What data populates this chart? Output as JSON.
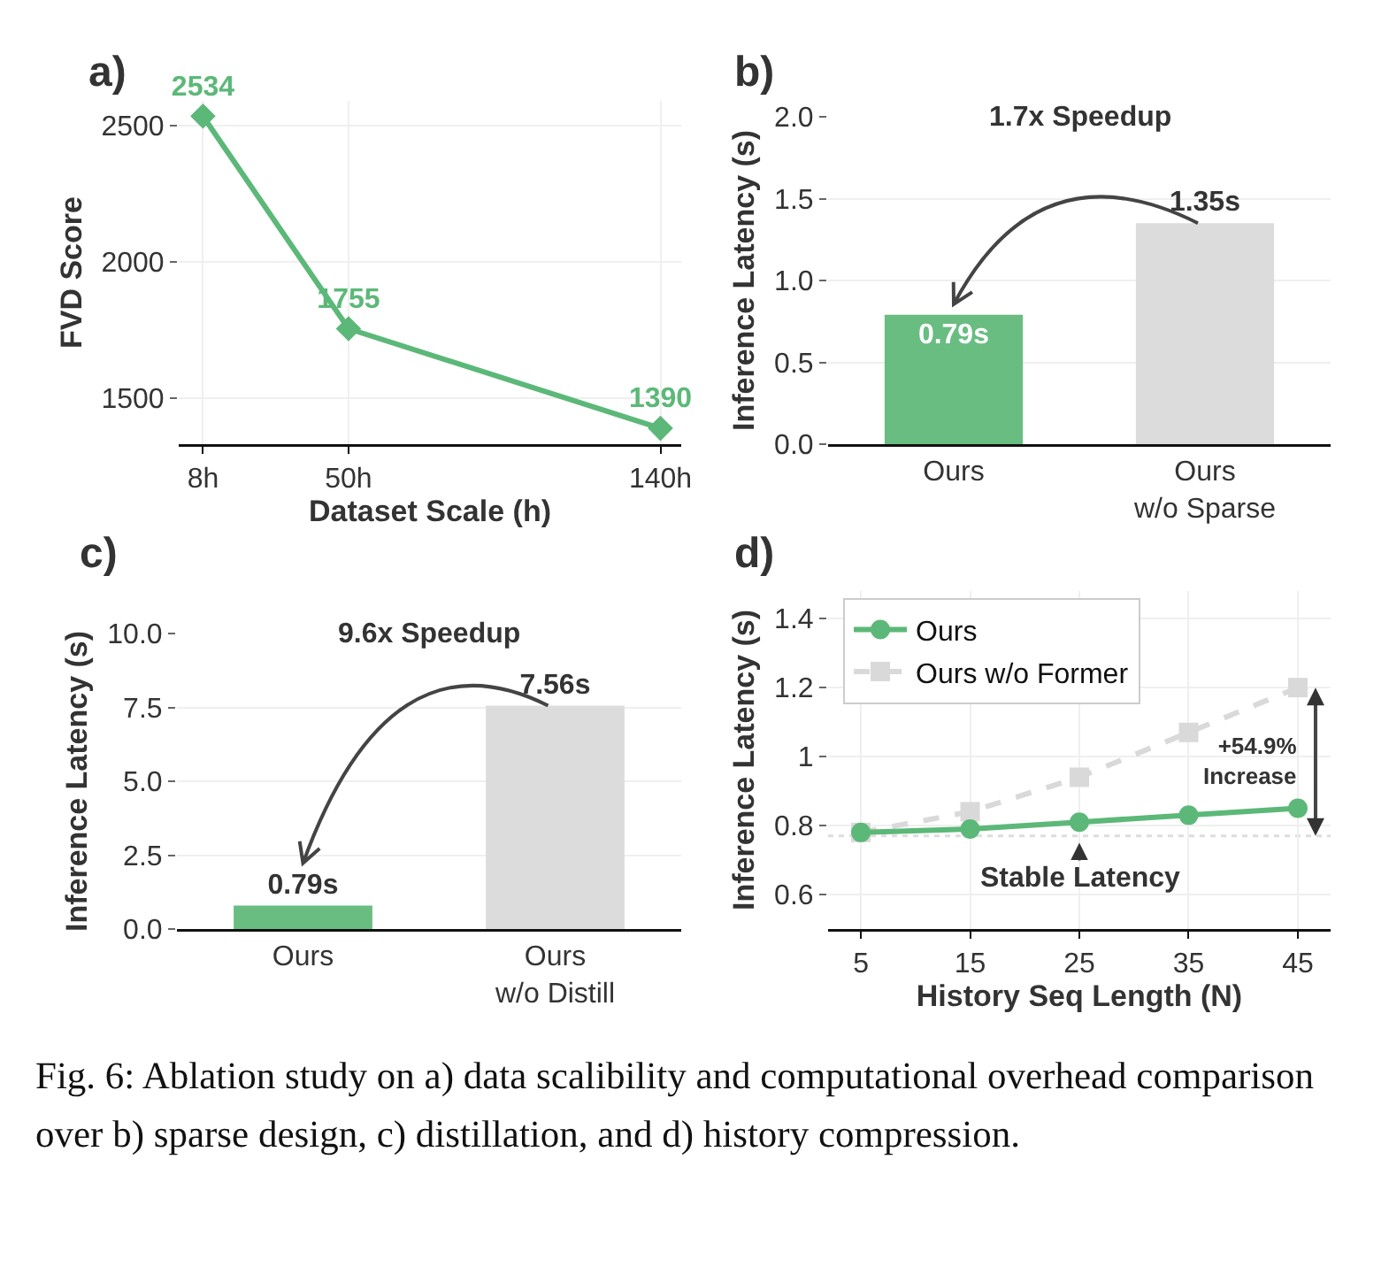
{
  "chart_data": [
    {
      "type": "line",
      "title": "a)",
      "xlabel": "Dataset Scale (h)",
      "ylabel": "FVD Score",
      "x": [
        8,
        50,
        140
      ],
      "xlim": [
        1,
        146
      ],
      "xticks": [
        {
          "value": 8,
          "label": "8h"
        },
        {
          "value": 50,
          "label": "50h"
        },
        {
          "value": 140,
          "label": "140h"
        }
      ],
      "ylim": [
        1332,
        2590
      ],
      "yticks": [
        1500,
        2000,
        2500
      ],
      "series": [
        {
          "color": "#5cb878",
          "values": [
            2534,
            1755,
            1390
          ]
        }
      ],
      "marker": "diamond",
      "data_labels": true,
      "grid": true
    },
    {
      "type": "bar",
      "title": "b)",
      "ylabel": "Inference Latency (s)",
      "categories": [
        "Ours",
        "Ours\nw/o Sparse"
      ],
      "values": [
        0.79,
        1.35
      ],
      "colors": [
        "#69bd80",
        "#dcdcdc"
      ],
      "value_labels": [
        "0.79s",
        "1.35s"
      ],
      "ylim": [
        0,
        2.0
      ],
      "yticks": [
        {
          "value": 0,
          "label": "0.0"
        },
        {
          "value": 0.5,
          "label": "0.5"
        },
        {
          "value": 1,
          "label": "1.0"
        },
        {
          "value": 1.5,
          "label": "1.5"
        },
        {
          "value": 2,
          "label": "2.0"
        }
      ],
      "annotations": [
        "1.7x Speedup"
      ],
      "grid": "y"
    },
    {
      "type": "bar",
      "title": "c)",
      "ylabel": "Inference Latency (s)",
      "categories": [
        "Ours",
        "Ours\nw/o Distill"
      ],
      "values": [
        0.79,
        7.56
      ],
      "colors": [
        "#69bd80",
        "#dcdcdc"
      ],
      "value_labels": [
        "0.79s",
        "7.56s"
      ],
      "ylim": [
        0,
        10.0
      ],
      "yticks": [
        {
          "value": 0,
          "label": "0.0"
        },
        {
          "value": 2.5,
          "label": "2.5"
        },
        {
          "value": 5,
          "label": "5.0"
        },
        {
          "value": 7.5,
          "label": "7.5"
        },
        {
          "value": 10,
          "label": "10.0"
        }
      ],
      "annotations": [
        "9.6x Speedup"
      ],
      "grid": "y"
    },
    {
      "type": "line",
      "title": "d)",
      "xlabel": "History Seq Length (N)",
      "ylabel": "Inference Latency (s)",
      "x": [
        5,
        15,
        25,
        35,
        45
      ],
      "xlim": [
        2,
        48
      ],
      "xticks": [
        5,
        15,
        25,
        35,
        45
      ],
      "ylim": [
        0.5,
        1.48
      ],
      "yticks": [
        0.6,
        0.8,
        1.0,
        1.2,
        1.4
      ],
      "series": [
        {
          "name": "Ours",
          "color": "#5cb878",
          "marker": "circle",
          "line_style": "solid",
          "values": [
            0.78,
            0.79,
            0.81,
            0.83,
            0.85
          ]
        },
        {
          "name": "Ours w/o Former",
          "color": "#d9d9d9",
          "marker": "square",
          "line_style": "dashed",
          "values": [
            0.78,
            0.84,
            0.94,
            1.07,
            1.2
          ]
        }
      ],
      "ref_lines": [
        {
          "axis": "y",
          "value": 0.77,
          "color": "#dddddd",
          "line_style": "dotted"
        }
      ],
      "annotations": [
        "+54.9%\nIncrease",
        {
          "text": "Stable Latency",
          "x": 25,
          "y": 0.75
        }
      ],
      "legend": "top left",
      "grid": true
    },
    {
      "type": "other",
      "annotations": [
        "Fig. 6: Ablation study on a) data scalibility and computational overhead comparison over b) sparse design, c) distillation, and d) history compression."
      ]
    }
  ]
}
